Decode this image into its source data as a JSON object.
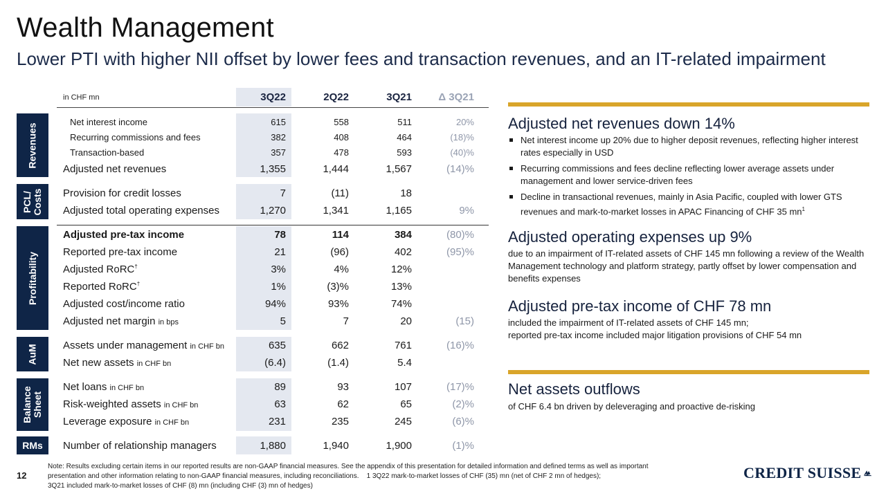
{
  "page": {
    "title": "Wealth Management",
    "subtitle": "Lower PTI with higher NII offset by lower fees and transaction revenues, and an IT-related impairment",
    "page_number": "12"
  },
  "table": {
    "unit_label": "in CHF mn",
    "columns": [
      "3Q22",
      "2Q22",
      "3Q21",
      "Δ 3Q21"
    ],
    "sections": {
      "revenues": "Revenues",
      "pcl_costs": "PCL/ Costs",
      "profitability": "Profitability",
      "aum": "AuM",
      "balance_sheet": "Balance Sheet",
      "rms": "RMs"
    },
    "rows": {
      "nii": {
        "label": "Net interest income",
        "v": [
          "615",
          "558",
          "511",
          "20%"
        ]
      },
      "rcf": {
        "label": "Recurring commissions and fees",
        "v": [
          "382",
          "408",
          "464",
          "(18)%"
        ]
      },
      "trans": {
        "label": "Transaction-based",
        "v": [
          "357",
          "478",
          "593",
          "(40)%"
        ]
      },
      "anr": {
        "label": "Adjusted net revenues",
        "v": [
          "1,355",
          "1,444",
          "1,567",
          "(14)%"
        ]
      },
      "pcl": {
        "label": "Provision for credit losses",
        "v": [
          "7",
          "(11)",
          "18",
          ""
        ]
      },
      "atoe": {
        "label": "Adjusted total operating expenses",
        "v": [
          "1,270",
          "1,341",
          "1,165",
          "9%"
        ]
      },
      "apti": {
        "label": "Adjusted pre-tax income",
        "v": [
          "78",
          "114",
          "384",
          "(80)%"
        ]
      },
      "rpti": {
        "label": "Reported pre-tax income",
        "v": [
          "21",
          "(96)",
          "402",
          "(95)%"
        ]
      },
      "arorc": {
        "label": "Adjusted RoRC",
        "sup": "†",
        "v": [
          "3%",
          "4%",
          "12%",
          ""
        ]
      },
      "rrorc": {
        "label": "Reported RoRC",
        "sup": "†",
        "v": [
          "1%",
          "(3)%",
          "13%",
          ""
        ]
      },
      "aci": {
        "label": "Adjusted cost/income ratio",
        "v": [
          "94%",
          "93%",
          "74%",
          ""
        ]
      },
      "anm": {
        "label": "Adjusted net margin",
        "unit": "in bps",
        "v": [
          "5",
          "7",
          "20",
          "(15)"
        ]
      },
      "aum": {
        "label": "Assets under management",
        "unit": "in CHF bn",
        "v": [
          "635",
          "662",
          "761",
          "(16)%"
        ]
      },
      "nna": {
        "label": "Net new assets",
        "unit": "in CHF bn",
        "v": [
          "(6.4)",
          "(1.4)",
          "5.4",
          ""
        ]
      },
      "loans": {
        "label": "Net loans",
        "unit": "in CHF bn",
        "v": [
          "89",
          "93",
          "107",
          "(17)%"
        ]
      },
      "rwa": {
        "label": "Risk-weighted assets",
        "unit": "in CHF bn",
        "v": [
          "63",
          "62",
          "65",
          "(2)%"
        ]
      },
      "lev": {
        "label": "Leverage exposure",
        "unit": "in CHF bn",
        "v": [
          "231",
          "235",
          "245",
          "(6)%"
        ]
      },
      "rm": {
        "label": "Number of relationship managers",
        "v": [
          "1,880",
          "1,940",
          "1,900",
          "(1)%"
        ]
      }
    }
  },
  "panel": {
    "h1": "Adjusted net revenues down 14%",
    "bullets": [
      "Net interest income up 20% due to higher deposit revenues, reflecting higher interest rates especially in USD",
      "Recurring commissions and fees decline reflecting lower average assets under management and lower service-driven fees",
      "Decline in transactional revenues, mainly in Asia Pacific, coupled with lower GTS revenues and mark-to-market losses in APAC Financing of CHF 35 mn"
    ],
    "bullet3_sup": "1",
    "h2": "Adjusted operating expenses up 9%",
    "t2": "due to an impairment of IT-related assets of CHF 145 mn following a review of the Wealth Management technology and platform strategy, partly offset by lower compensation and benefits expenses",
    "h3": "Adjusted pre-tax income of CHF 78 mn",
    "t3a": "included the impairment of IT-related assets of CHF 145 mn;",
    "t3b": "reported pre-tax income included major litigation provisions of CHF 54 mn",
    "h4": "Net assets outflows",
    "t4": "of CHF 6.4 bn driven by deleveraging and proactive de-risking"
  },
  "footer": {
    "note_line1": "Note: Results excluding certain items in our reported results are non-GAAP financial measures. See the appendix of this presentation for detailed information and defined terms as well as important",
    "note_line2": "presentation and other information relating to non-GAAP financial measures, including reconciliations.    1 3Q22 mark-to-market losses of CHF (35) mn (net of CHF 2 mn of hedges);",
    "note_line3": "3Q21 included mark-to-market losses of CHF (8) mn (including CHF (3) mn of hedges)",
    "logo_text": "CREDIT SUISSE"
  },
  "colors": {
    "navy": "#0f2547",
    "gold": "#d9a52a",
    "shade": "#e4e8f0",
    "delta_grey": "#8e96a8"
  }
}
